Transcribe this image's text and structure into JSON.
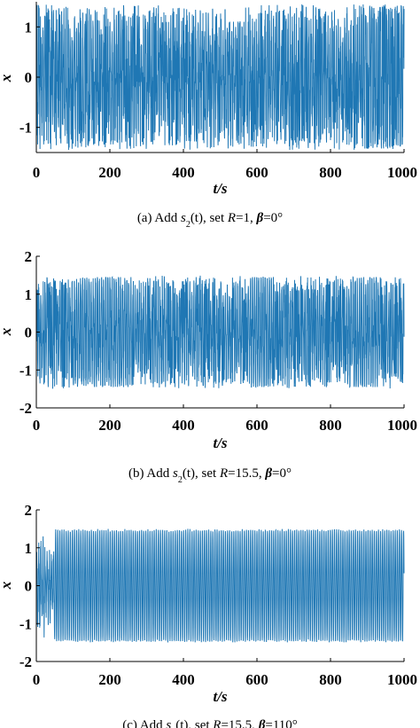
{
  "chart_data": [
    {
      "type": "line",
      "panel": "a",
      "x_range": [
        0,
        1000
      ],
      "ylim": [
        -1.5,
        1.5
      ],
      "xlabel": "t/s",
      "ylabel": "x",
      "xticks": [
        "0",
        "200",
        "400",
        "600",
        "800",
        "1000"
      ],
      "yticks": [
        "-1",
        "0",
        "1"
      ],
      "caption": {
        "pre": "(a) Add ",
        "s": "s",
        "sub": "2",
        "mid": "(t), set ",
        "R": "R",
        "mid2": "=1, ",
        "beta": "β",
        "post": "=0°"
      },
      "series": [
        {
          "amplitude": 1.45,
          "period": 5.7,
          "regime": "chaotic"
        }
      ],
      "color": "#1f77b4",
      "grid": false
    },
    {
      "type": "line",
      "panel": "b",
      "x_range": [
        0,
        1000
      ],
      "ylim": [
        -2,
        2
      ],
      "xlabel": "t/s",
      "ylabel": "x",
      "xticks": [
        "0",
        "200",
        "400",
        "600",
        "800",
        "1000"
      ],
      "yticks": [
        "-2",
        "-1",
        "0",
        "1",
        "2"
      ],
      "caption": {
        "pre": "(b) Add ",
        "s": "s",
        "sub": "2",
        "mid": "(t), set ",
        "R": "R",
        "mid2": "=15.5, ",
        "beta": "β",
        "post": "=0°"
      },
      "series": [
        {
          "amplitude": 1.5,
          "period": 5.7,
          "regime": "intermittent"
        }
      ],
      "color": "#1f77b4",
      "grid": false
    },
    {
      "type": "line",
      "panel": "c",
      "x_range": [
        0,
        1000
      ],
      "ylim": [
        -2,
        2
      ],
      "xlabel": "t/s",
      "ylabel": "x",
      "xticks": [
        "0",
        "200",
        "400",
        "600",
        "800",
        "1000"
      ],
      "yticks": [
        "-2",
        "-1",
        "0",
        "1",
        "2"
      ],
      "caption": {
        "pre": "(c) Add ",
        "s": "s",
        "sub": "2",
        "mid": "(t), set ",
        "R": "R",
        "mid2": "=15.5, ",
        "beta": "β",
        "post": "=110°"
      },
      "series": [
        {
          "amplitude": 1.5,
          "period": 5.7,
          "regime": "periodic"
        }
      ],
      "color": "#1f77b4",
      "grid": false
    }
  ]
}
